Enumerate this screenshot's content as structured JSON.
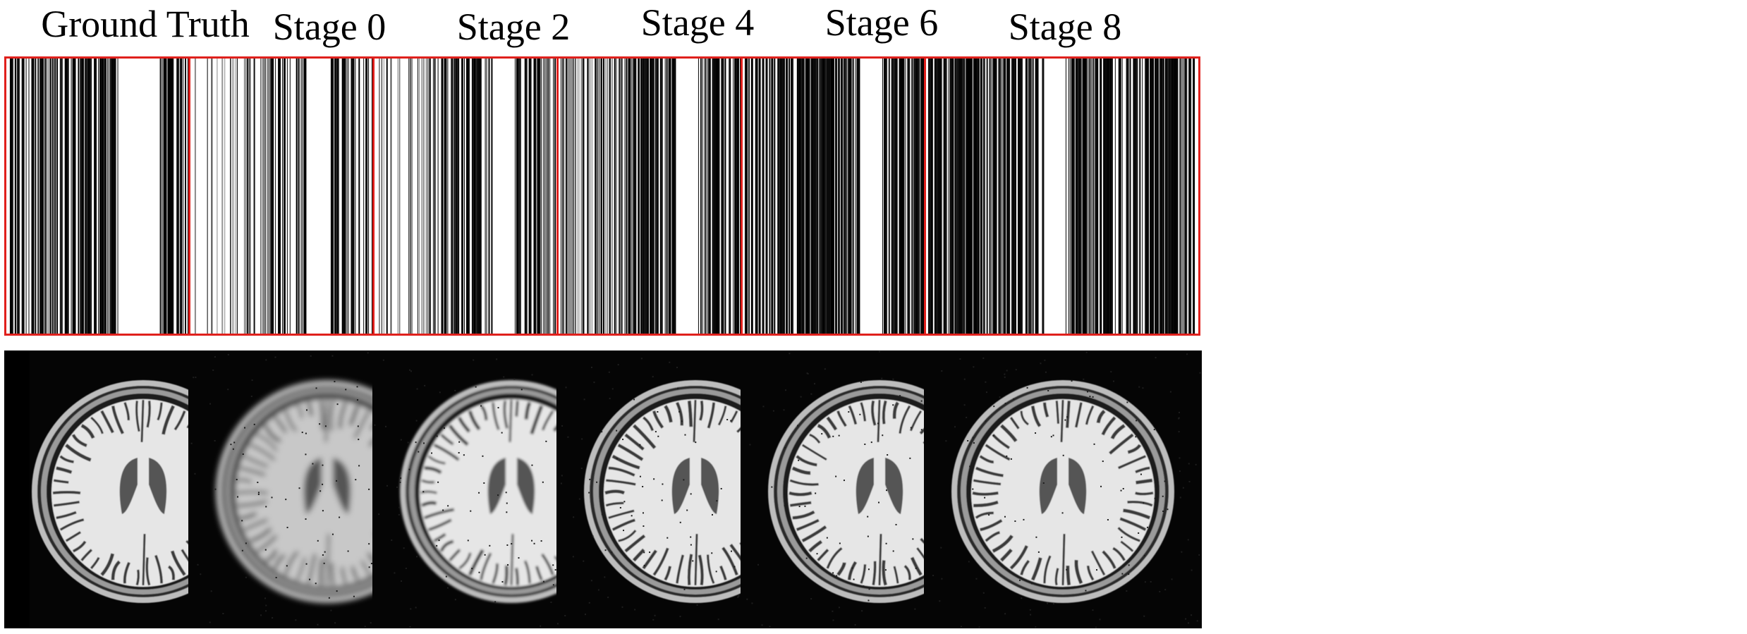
{
  "figure": {
    "columns": [
      {
        "title": "Ground Truth",
        "mask_kind": "gt",
        "mri_quality": "gt"
      },
      {
        "title": "Stage 0",
        "mask_kind": "sparse",
        "mri_quality": "blurry"
      },
      {
        "title": "Stage 2",
        "mask_kind": "sparse2",
        "mri_quality": "medium"
      },
      {
        "title": "Stage 4",
        "mask_kind": "dense",
        "mri_quality": "good"
      },
      {
        "title": "Stage 6",
        "mask_kind": "full",
        "mri_quality": "good"
      },
      {
        "title": "Stage 8",
        "mask_kind": "full2",
        "mri_quality": "good"
      }
    ],
    "colors": {
      "mask_border": "#e0201c",
      "mask_line": "#000000",
      "mri_background": "#050505",
      "brain_tissue": "#e8e8e8",
      "ventricle": "#555555"
    }
  }
}
